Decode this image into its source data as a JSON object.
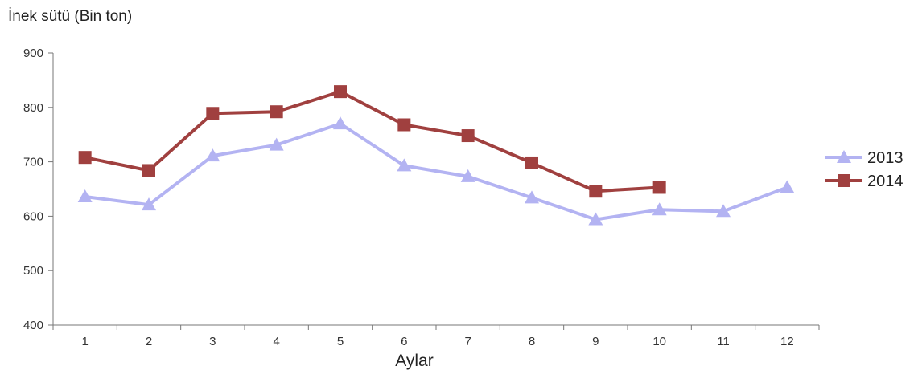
{
  "chart_data": {
    "type": "line",
    "title": "",
    "ylabel": "İnek sütü (Bin ton)",
    "xlabel": "Aylar",
    "categories": [
      "1",
      "2",
      "3",
      "4",
      "5",
      "6",
      "7",
      "8",
      "9",
      "10",
      "11",
      "12"
    ],
    "ylim": [
      400,
      900
    ],
    "yticks": [
      400,
      500,
      600,
      700,
      800,
      900
    ],
    "grid": false,
    "legend_position": "right",
    "series": [
      {
        "name": "2013",
        "color": "#b3b3f2",
        "marker": "triangle",
        "values": [
          636,
          621,
          711,
          731,
          770,
          693,
          673,
          634,
          594,
          612,
          609,
          653
        ]
      },
      {
        "name": "2014",
        "color": "#a0403f",
        "marker": "square",
        "values": [
          708,
          684,
          789,
          792,
          829,
          768,
          748,
          698,
          646,
          653,
          null,
          null
        ]
      }
    ]
  }
}
